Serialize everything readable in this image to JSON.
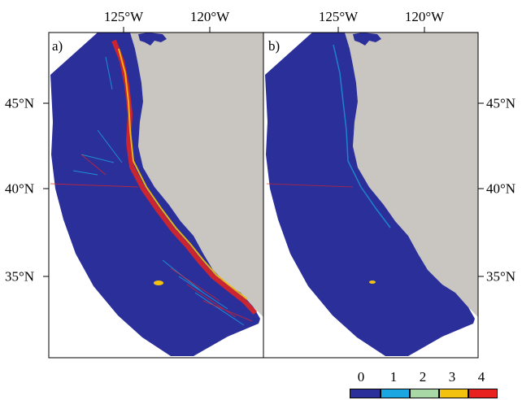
{
  "top_axis_labels": [
    "125°W",
    "120°W"
  ],
  "left_axis_labels": [
    "45°N",
    "40°N",
    "35°N"
  ],
  "right_axis_labels": [
    "45°N",
    "40°N",
    "35°N"
  ],
  "panel_labels": [
    "a)",
    "b)"
  ],
  "legend": {
    "values": [
      "0",
      "1",
      "2",
      "3",
      "4"
    ],
    "colors": [
      "#2b2f99",
      "#1aa6e0",
      "#a8d8a6",
      "#f2c20e",
      "#e8231f"
    ]
  },
  "colors": {
    "ocean": "#2b2f99",
    "land": "#c9c5c1",
    "frame": "#000000"
  }
}
